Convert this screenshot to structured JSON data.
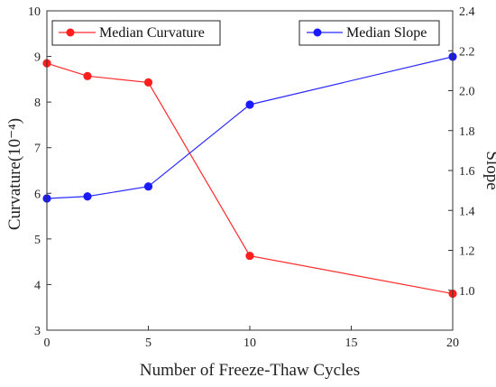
{
  "chart_data": {
    "type": "line",
    "x": [
      0,
      2,
      5,
      10,
      20
    ],
    "series": [
      {
        "name": "Median Curvature",
        "axis": "left",
        "color": "#ff2a2a",
        "marker_color": "#ff1f1f",
        "values": [
          8.85,
          8.57,
          8.43,
          4.63,
          3.8
        ]
      },
      {
        "name": "Median Slope",
        "axis": "right",
        "color": "#2a2aff",
        "marker_color": "#1a1aff",
        "values": [
          1.46,
          1.47,
          1.52,
          1.93,
          2.17
        ]
      }
    ],
    "title": "",
    "xlabel": "Number of Freeze-Thaw Cycles",
    "ylabel_left": "Curvature(10⁻⁴)",
    "ylabel_right": "Slope",
    "xlim": [
      0,
      20
    ],
    "ylim_left": [
      3,
      10
    ],
    "ylim_right": [
      0.8,
      2.4
    ],
    "xticks": [
      0,
      5,
      10,
      15,
      20
    ],
    "yticks_left": [
      3,
      4,
      5,
      6,
      7,
      8,
      9,
      10
    ],
    "yticks_right": [
      1.0,
      1.2,
      1.4,
      1.6,
      1.8,
      2.0,
      2.2,
      2.4
    ],
    "grid": false,
    "legend": [
      {
        "label": "Median Curvature",
        "placement": "top-left"
      },
      {
        "label": "Median Slope",
        "placement": "top-right"
      }
    ]
  }
}
